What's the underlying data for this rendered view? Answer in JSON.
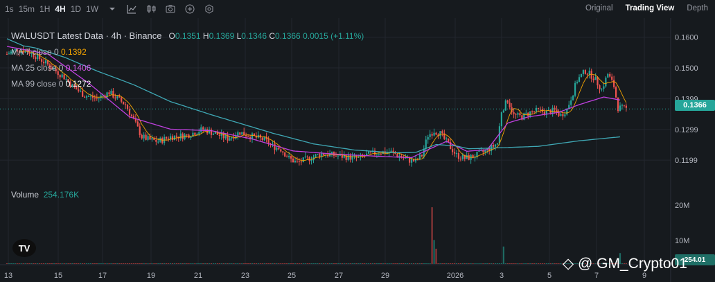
{
  "toolbar": {
    "intervals": [
      "1s",
      "15m",
      "1H",
      "4H",
      "1D",
      "1W"
    ],
    "active_interval": "4H",
    "views": [
      "Original",
      "Trading View",
      "Depth"
    ],
    "active_view": "Trading View",
    "icons": [
      "chevron-down-icon",
      "indicators-icon",
      "candles-icon",
      "camera-icon",
      "add-icon",
      "settings-icon"
    ]
  },
  "legend": {
    "title": "WALUSDT Latest Data · 4h · Binance",
    "open_label": "O",
    "open": "0.1351",
    "high_label": "H",
    "high": "0.1369",
    "low_label": "L",
    "low": "0.1346",
    "close_label": "C",
    "close": "0.1366",
    "change": "0.0015 (+1.11%)",
    "ma7_label": "MA 7 close 0",
    "ma7": "0.1392",
    "ma25_label": "MA 25 close 0",
    "ma25": "0.1406",
    "ma99_label": "MA 99 close 0",
    "ma99": "0.1272"
  },
  "volume": {
    "label": "Volume",
    "value": "254.176K"
  },
  "colors": {
    "up": "#26a69a",
    "down": "#ef5350",
    "ma7": "#f7a600",
    "ma25": "#c040e0",
    "ma99": "#3fa8b5",
    "background": "#161a1e"
  },
  "watermark": "@ GM_Crypto01",
  "chart_data": {
    "type": "candlestick",
    "symbol": "WALUSDT",
    "interval": "4h",
    "exchange": "Binance",
    "price_axis": {
      "ticks": [
        "0.1600",
        "0.1500",
        "0.1399",
        "0.1299",
        "0.1199"
      ],
      "ylim": [
        0.1145,
        0.164
      ]
    },
    "volume_axis": {
      "ticks": [
        "20M",
        "10M"
      ]
    },
    "x_ticks": [
      "13",
      "15",
      "17",
      "19",
      "21",
      "23",
      "25",
      "27",
      "29",
      "2026",
      "3",
      "5",
      "7",
      "9"
    ],
    "last_price": "0.1366",
    "last_volume_tag": "254.01",
    "ma_keypoints": {
      "ma99": [
        [
          0,
          0.1595
        ],
        [
          8,
          0.1572
        ],
        [
          14,
          0.1565
        ],
        [
          28,
          0.1535
        ],
        [
          44,
          0.149
        ],
        [
          62,
          0.1445
        ],
        [
          80,
          0.139
        ],
        [
          100,
          0.1347
        ],
        [
          130,
          0.1287
        ],
        [
          150,
          0.1252
        ],
        [
          170,
          0.1232
        ],
        [
          190,
          0.1223
        ],
        [
          200,
          0.1224
        ],
        [
          210,
          0.125
        ],
        [
          220,
          0.1245
        ],
        [
          226,
          0.1236
        ],
        [
          240,
          0.1239
        ],
        [
          260,
          0.1244
        ],
        [
          280,
          0.1262
        ],
        [
          300,
          0.1275
        ]
      ],
      "ma25": [
        [
          0,
          0.157
        ],
        [
          20,
          0.1545
        ],
        [
          40,
          0.145
        ],
        [
          60,
          0.134
        ],
        [
          80,
          0.13
        ],
        [
          100,
          0.1295
        ],
        [
          120,
          0.1268
        ],
        [
          140,
          0.1229
        ],
        [
          160,
          0.1219
        ],
        [
          180,
          0.1212
        ],
        [
          198,
          0.1207
        ],
        [
          205,
          0.123
        ],
        [
          215,
          0.126
        ],
        [
          225,
          0.1228
        ],
        [
          235,
          0.1233
        ],
        [
          245,
          0.132
        ],
        [
          255,
          0.134
        ],
        [
          270,
          0.1355
        ],
        [
          280,
          0.138
        ],
        [
          292,
          0.1405
        ],
        [
          300,
          0.1395
        ]
      ]
    },
    "price_keypoints": [
      [
        0,
        0.1545
      ],
      [
        5,
        0.156
      ],
      [
        10,
        0.1555
      ],
      [
        15,
        0.1535
      ],
      [
        22,
        0.15
      ],
      [
        28,
        0.147
      ],
      [
        32,
        0.144
      ],
      [
        38,
        0.141
      ],
      [
        44,
        0.14
      ],
      [
        50,
        0.142
      ],
      [
        58,
        0.138
      ],
      [
        62,
        0.133
      ],
      [
        66,
        0.1275
      ],
      [
        70,
        0.1265
      ],
      [
        74,
        0.126
      ],
      [
        80,
        0.1275
      ],
      [
        88,
        0.128
      ],
      [
        96,
        0.13
      ],
      [
        102,
        0.1285
      ],
      [
        108,
        0.127
      ],
      [
        114,
        0.129
      ],
      [
        118,
        0.128
      ],
      [
        126,
        0.1265
      ],
      [
        130,
        0.1245
      ],
      [
        134,
        0.1235
      ],
      [
        138,
        0.1205
      ],
      [
        142,
        0.119
      ],
      [
        146,
        0.12
      ],
      [
        150,
        0.121
      ],
      [
        154,
        0.122
      ],
      [
        160,
        0.1215
      ],
      [
        166,
        0.121
      ],
      [
        172,
        0.1205
      ],
      [
        176,
        0.1215
      ],
      [
        182,
        0.1225
      ],
      [
        188,
        0.1225
      ],
      [
        196,
        0.12
      ],
      [
        200,
        0.1195
      ],
      [
        203,
        0.1215
      ],
      [
        206,
        0.128
      ],
      [
        209,
        0.1295
      ],
      [
        212,
        0.1285
      ],
      [
        216,
        0.125
      ],
      [
        220,
        0.1215
      ],
      [
        224,
        0.1205
      ],
      [
        228,
        0.121
      ],
      [
        233,
        0.1225
      ],
      [
        237,
        0.124
      ],
      [
        240,
        0.1255
      ],
      [
        242,
        0.136
      ],
      [
        245,
        0.1395
      ],
      [
        248,
        0.1345
      ],
      [
        252,
        0.134
      ],
      [
        256,
        0.1355
      ],
      [
        260,
        0.136
      ],
      [
        264,
        0.1355
      ],
      [
        268,
        0.136
      ],
      [
        271,
        0.1345
      ],
      [
        274,
        0.1365
      ],
      [
        277,
        0.142
      ],
      [
        279,
        0.146
      ],
      [
        283,
        0.149
      ],
      [
        287,
        0.147
      ],
      [
        291,
        0.143
      ],
      [
        294,
        0.148
      ],
      [
        297,
        0.144
      ],
      [
        299,
        0.137
      ],
      [
        303,
        0.1366
      ]
    ],
    "volume_keypoints": [
      [
        0,
        0.05
      ],
      [
        100,
        0.06
      ],
      [
        205,
        0.2
      ],
      [
        208,
        0.02
      ],
      [
        211,
        0.06
      ],
      [
        218,
        0.12
      ],
      [
        240,
        0.15
      ],
      [
        242,
        0.04
      ],
      [
        260,
        0.07
      ],
      [
        280,
        0.06
      ],
      [
        303,
        0.02
      ]
    ],
    "volume_spikes": [
      [
        208,
        26.0
      ],
      [
        209,
        11.0
      ],
      [
        210,
        7.0
      ],
      [
        243,
        8.0
      ],
      [
        300,
        5.0
      ]
    ]
  }
}
